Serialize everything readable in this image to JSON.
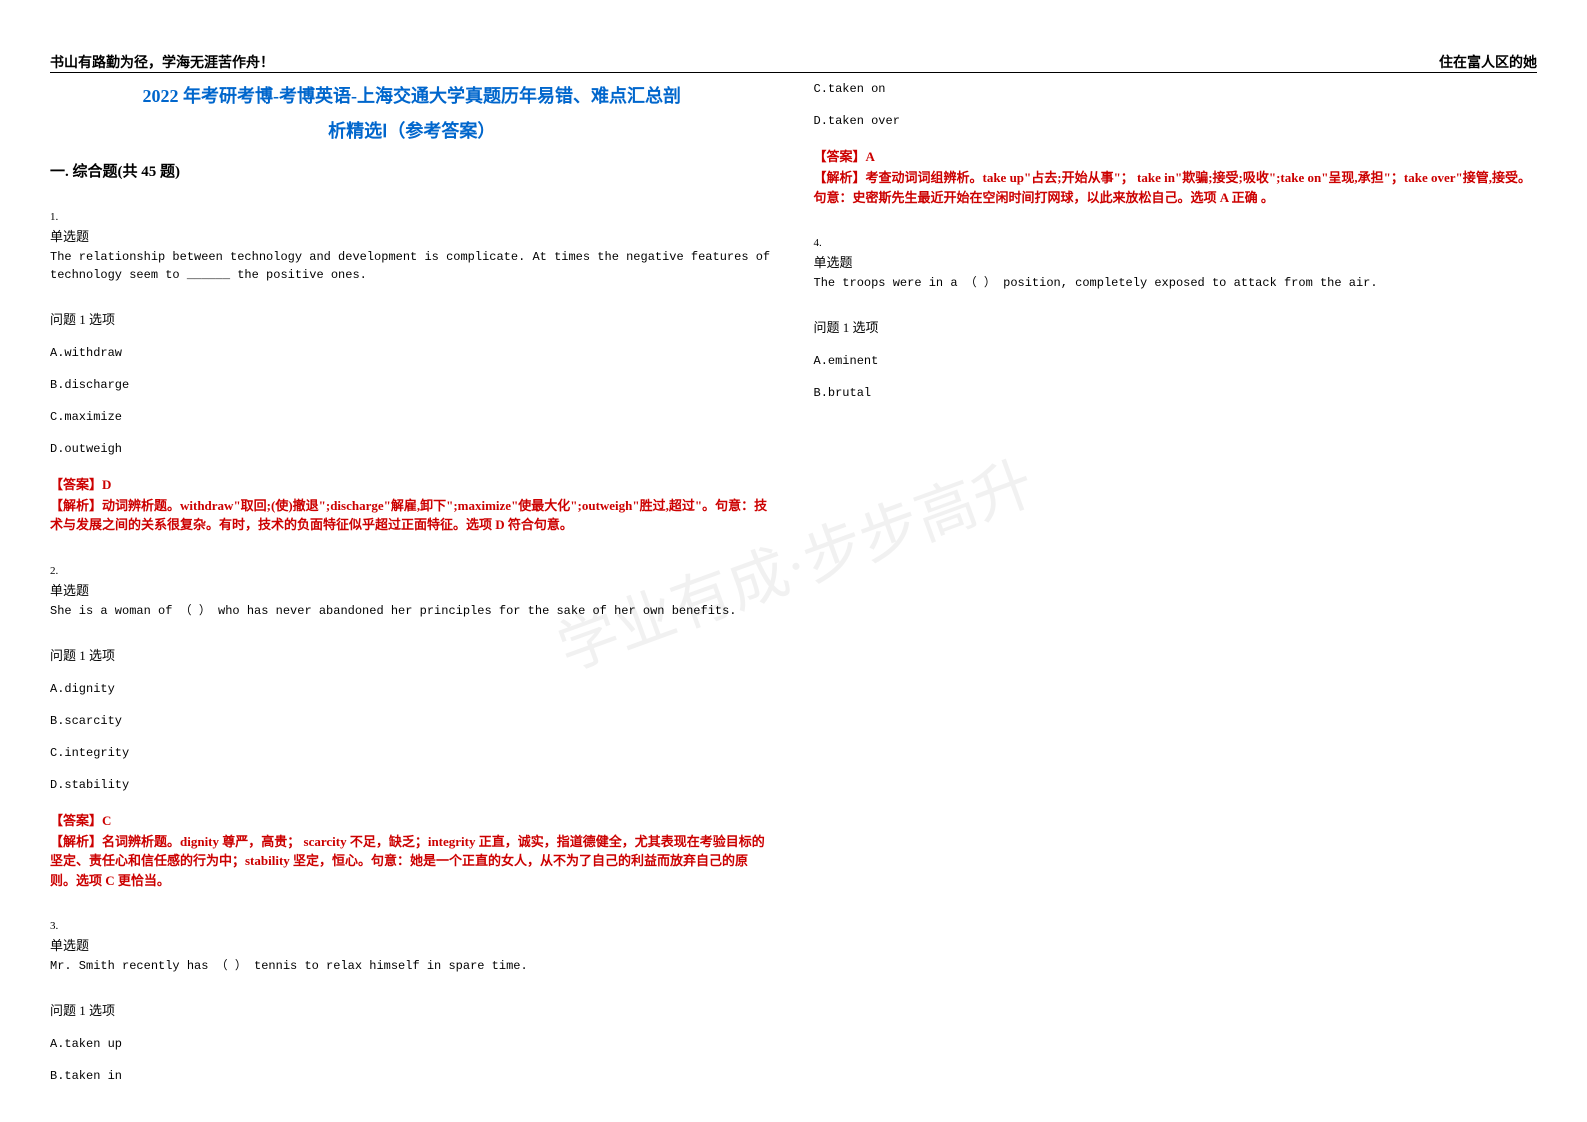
{
  "header": {
    "left": "书山有路勤为径，学海无涯苦作舟！",
    "right": "住在富人区的她"
  },
  "watermark": "学业有成·步步高升",
  "title": {
    "line1": "2022 年考研考博-考博英语-上海交通大学真题历年易错、难点汇总剖",
    "line2": "析精选Ⅰ（参考答案）"
  },
  "section_heading": "一. 综合题(共 45 题)",
  "questions": [
    {
      "num": "1.",
      "type": "单选题",
      "stem": "The relationship between technology and development is complicate. At times the negative features of technology seem to ______ the positive ones.",
      "option_heading": "问题 1 选项",
      "options": [
        "A.withdraw",
        "B.discharge",
        "C.maximize",
        "D.outweigh"
      ],
      "answer": "【答案】D",
      "explanation": "【解析】动词辨析题。withdraw\"取回;(使)撤退\";discharge\"解雇,卸下\";maximize\"使最大化\";outweigh\"胜过,超过\"。句意：技术与发展之间的关系很复杂。有时，技术的负面特征似乎超过正面特征。选项 D 符合句意。"
    },
    {
      "num": "2.",
      "type": "单选题",
      "stem": "She is a woman of （ ） who has never abandoned her principles for the sake of her own benefits.",
      "option_heading": "问题 1 选项",
      "options": [
        "A.dignity",
        "B.scarcity",
        "C.integrity",
        "D.stability"
      ],
      "answer": "【答案】C",
      "explanation": "【解析】名词辨析题。dignity 尊严，高贵； scarcity 不足，缺乏；integrity 正直，诚实，指道德健全，尤其表现在考验目标的坚定、责任心和信任感的行为中；stability 坚定，恒心。句意：她是一个正直的女人，从不为了自己的利益而放弃自己的原则。选项 C 更恰当。"
    },
    {
      "num": "3.",
      "type": "单选题",
      "stem": "Mr. Smith recently has （ ）  tennis to relax himself in spare time.",
      "option_heading": "问题 1 选项",
      "options": [
        "A.taken up",
        "B.taken in",
        "C.taken on",
        "D.taken over"
      ],
      "answer": "【答案】A",
      "explanation": "【解析】考查动词词组辨析。take up\"占去;开始从事\"； take in\"欺骗;接受;吸收\";take on\"呈现,承担\"；take over\"接管,接受。句意：史密斯先生最近开始在空闲时间打网球，以此来放松自己。选项 A 正确 。"
    },
    {
      "num": "4.",
      "type": "单选题",
      "stem": "The troops were in a （ ） position, completely exposed to attack from the air.",
      "option_heading": "问题 1 选项",
      "options": [
        "A.eminent",
        "B.brutal"
      ],
      "answer": "",
      "explanation": ""
    }
  ],
  "styles": {
    "title_color": "#0066cc",
    "answer_color": "#cc0000",
    "text_color": "#000000",
    "background_color": "#ffffff"
  }
}
